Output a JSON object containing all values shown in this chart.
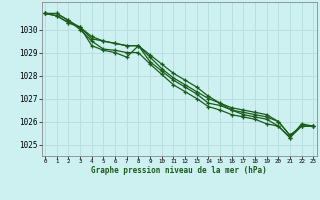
{
  "title": "Graphe pression niveau de la mer (hPa)",
  "background_color": "#cdf0f0",
  "line_color": "#1a5c1a",
  "grid_color": "#b8dede",
  "ylim": [
    1024.5,
    1031.2
  ],
  "xlim": [
    -0.3,
    23.3
  ],
  "yticks": [
    1025,
    1026,
    1027,
    1028,
    1029,
    1030
  ],
  "xticks": [
    0,
    1,
    2,
    3,
    4,
    5,
    6,
    7,
    8,
    9,
    10,
    11,
    12,
    13,
    14,
    15,
    16,
    17,
    18,
    19,
    20,
    21,
    22,
    23
  ],
  "series": [
    [
      1030.7,
      1030.6,
      1030.3,
      1030.1,
      1029.6,
      1029.5,
      1029.4,
      1029.3,
      1029.3,
      1028.6,
      1028.2,
      1027.8,
      1027.5,
      1027.2,
      1026.8,
      1026.7,
      1026.5,
      1026.4,
      1026.3,
      1026.2,
      1026.0,
      1025.4,
      1025.8,
      1025.8
    ],
    [
      1030.7,
      1030.6,
      1030.3,
      1030.1,
      1029.7,
      1029.5,
      1029.4,
      1029.3,
      1029.3,
      1028.8,
      1028.3,
      1027.9,
      1027.6,
      1027.3,
      1027.0,
      1026.8,
      1026.6,
      1026.5,
      1026.4,
      1026.3,
      1026.0,
      1025.4,
      1025.8,
      1025.8
    ],
    [
      1030.7,
      1030.7,
      1030.4,
      1030.0,
      1029.5,
      1029.15,
      1029.1,
      1029.0,
      1029.0,
      1028.5,
      1028.05,
      1027.6,
      1027.3,
      1027.0,
      1026.65,
      1026.5,
      1026.3,
      1026.2,
      1026.1,
      1025.9,
      1025.8,
      1025.3,
      1025.9,
      1025.8
    ],
    [
      1030.7,
      1030.7,
      1030.4,
      1030.1,
      1029.3,
      1029.1,
      1029.0,
      1028.8,
      1029.3,
      1028.9,
      1028.5,
      1028.1,
      1027.8,
      1027.5,
      1027.1,
      1026.8,
      1026.5,
      1026.3,
      1026.2,
      1026.1,
      1025.8,
      1025.3,
      1025.8,
      1025.8
    ]
  ]
}
